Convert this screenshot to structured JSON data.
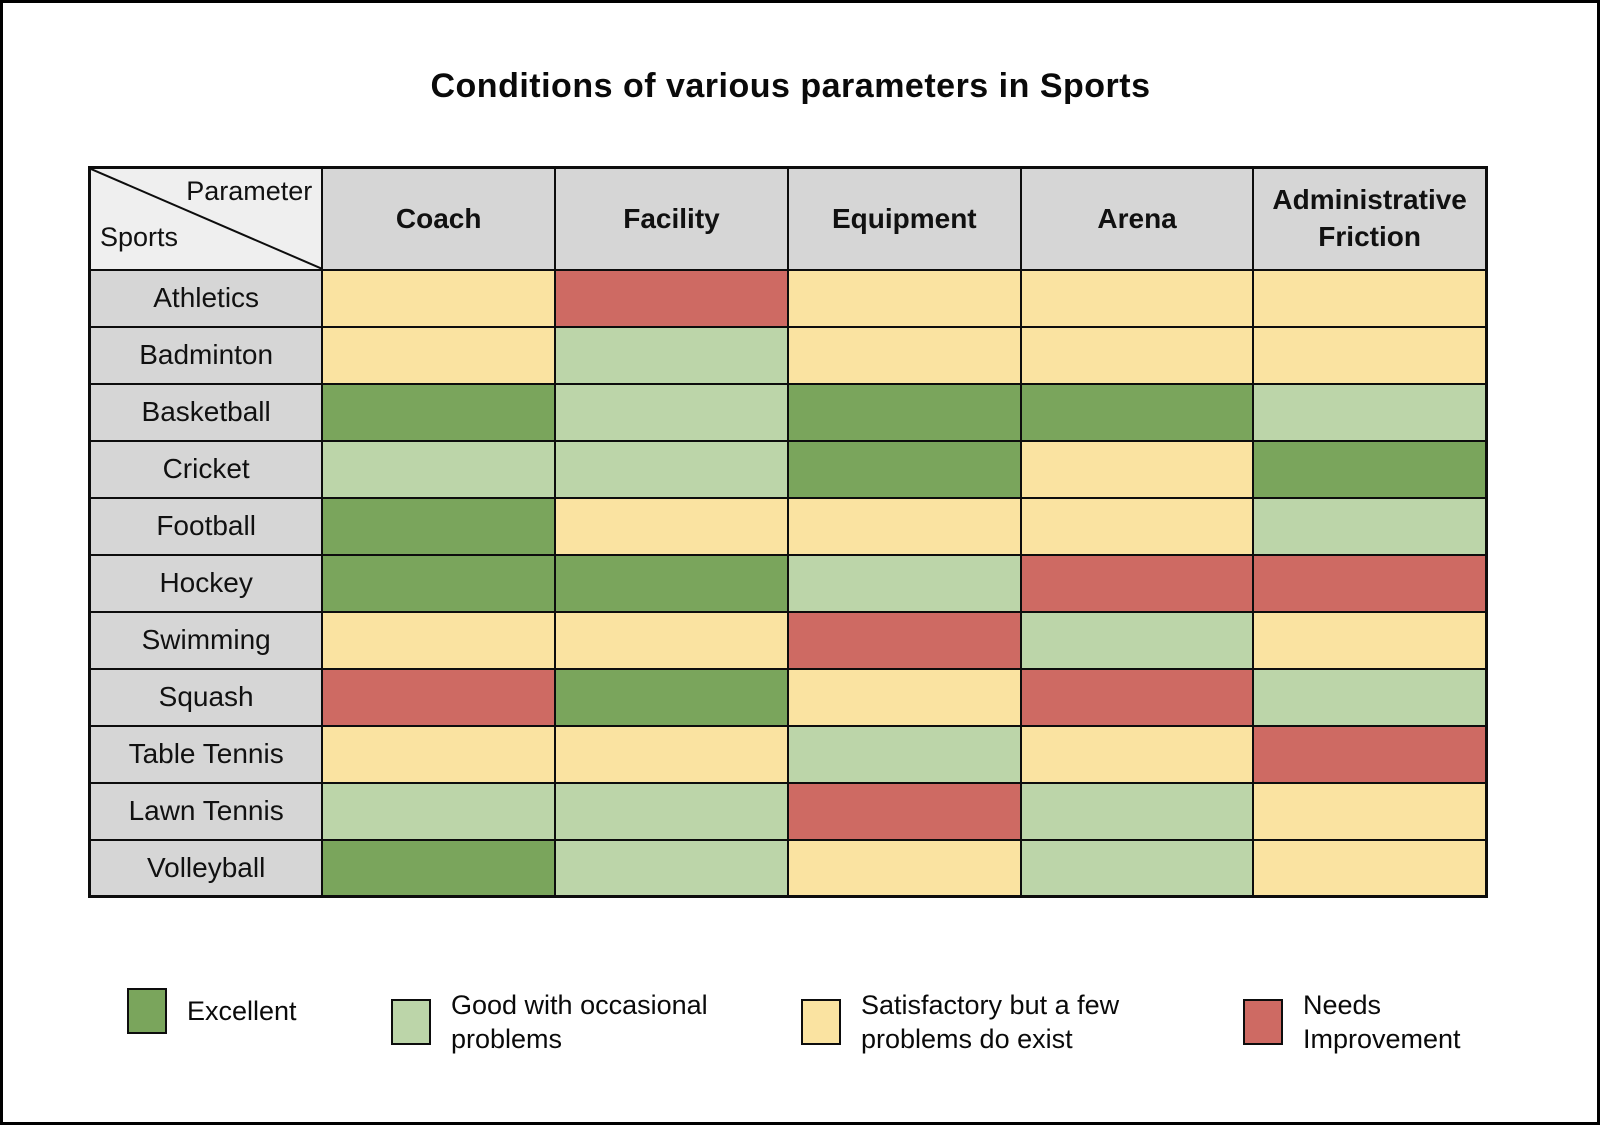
{
  "title": "Conditions of various parameters in Sports",
  "corner": {
    "parameter_label": "Parameter",
    "sports_label": "Sports"
  },
  "chart_data": {
    "type": "heatmap",
    "title": "Conditions of various parameters in Sports",
    "columns": [
      "Coach",
      "Facility",
      "Equipment",
      "Arena",
      "Administrative Friction"
    ],
    "rows": [
      {
        "sport": "Athletics",
        "values": [
          "satisfactory",
          "needs_improvement",
          "satisfactory",
          "satisfactory",
          "satisfactory"
        ]
      },
      {
        "sport": "Badminton",
        "values": [
          "satisfactory",
          "good",
          "satisfactory",
          "satisfactory",
          "satisfactory"
        ]
      },
      {
        "sport": "Basketball",
        "values": [
          "excellent",
          "good",
          "excellent",
          "excellent",
          "good"
        ]
      },
      {
        "sport": "Cricket",
        "values": [
          "good",
          "good",
          "excellent",
          "satisfactory",
          "excellent"
        ]
      },
      {
        "sport": "Football",
        "values": [
          "excellent",
          "satisfactory",
          "satisfactory",
          "satisfactory",
          "good"
        ]
      },
      {
        "sport": "Hockey",
        "values": [
          "excellent",
          "excellent",
          "good",
          "needs_improvement",
          "needs_improvement"
        ]
      },
      {
        "sport": "Swimming",
        "values": [
          "satisfactory",
          "satisfactory",
          "needs_improvement",
          "good",
          "satisfactory"
        ]
      },
      {
        "sport": "Squash",
        "values": [
          "needs_improvement",
          "excellent",
          "satisfactory",
          "needs_improvement",
          "good"
        ]
      },
      {
        "sport": "Table Tennis",
        "values": [
          "satisfactory",
          "satisfactory",
          "good",
          "satisfactory",
          "needs_improvement"
        ]
      },
      {
        "sport": "Lawn Tennis",
        "values": [
          "good",
          "good",
          "needs_improvement",
          "good",
          "satisfactory"
        ]
      },
      {
        "sport": "Volleyball",
        "values": [
          "excellent",
          "good",
          "satisfactory",
          "good",
          "satisfactory"
        ]
      }
    ],
    "status_colors": {
      "excellent": "#7AA55C",
      "good": "#BCD5A9",
      "satisfactory": "#FAE3A1",
      "needs_improvement": "#CE6A63"
    },
    "legend": [
      {
        "status": "excellent",
        "label": "Excellent"
      },
      {
        "status": "good",
        "label": "Good with occasional problems"
      },
      {
        "status": "satisfactory",
        "label": "Satisfactory but a few problems do exist"
      },
      {
        "status": "needs_improvement",
        "label": "Needs Improvement"
      }
    ],
    "legend_position": "bottom"
  },
  "colors": {
    "header_bg": "#D6D6D6",
    "corner_bg": "#EFEFEF",
    "row_label_bg": "#D6D6D6",
    "grid_border": "#0D0D0D",
    "page_bg": "#FFFFFF"
  }
}
